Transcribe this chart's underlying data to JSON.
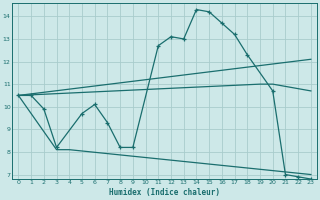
{
  "bg_color": "#cde8e8",
  "grid_color": "#a8cccc",
  "line_color": "#1a6e6e",
  "xlabel": "Humidex (Indice chaleur)",
  "xlim": [
    -0.5,
    23.5
  ],
  "ylim": [
    6.8,
    14.6
  ],
  "yticks": [
    7,
    8,
    9,
    10,
    11,
    12,
    13,
    14
  ],
  "xticks": [
    0,
    1,
    2,
    3,
    4,
    5,
    6,
    7,
    8,
    9,
    10,
    11,
    12,
    13,
    14,
    15,
    16,
    17,
    18,
    19,
    20,
    21,
    22,
    23
  ],
  "curve_main": {
    "x": [
      0,
      1,
      2,
      3,
      5,
      6,
      7,
      8,
      9,
      11,
      12,
      13,
      14,
      15,
      16,
      17,
      18,
      20,
      21,
      22,
      23
    ],
    "y": [
      10.5,
      10.5,
      9.9,
      8.2,
      9.7,
      10.1,
      9.3,
      8.2,
      8.2,
      12.7,
      13.1,
      13.0,
      14.3,
      14.2,
      13.7,
      13.2,
      12.3,
      10.7,
      7.0,
      6.9,
      6.8
    ]
  },
  "curve_upper": {
    "x": [
      0,
      23
    ],
    "y": [
      10.5,
      12.1
    ]
  },
  "curve_mid": {
    "x": [
      0,
      19,
      20,
      23
    ],
    "y": [
      10.5,
      11.0,
      11.0,
      10.7
    ]
  },
  "curve_lower": {
    "x": [
      0,
      3,
      4,
      23
    ],
    "y": [
      10.5,
      8.1,
      8.1,
      7.0
    ]
  }
}
